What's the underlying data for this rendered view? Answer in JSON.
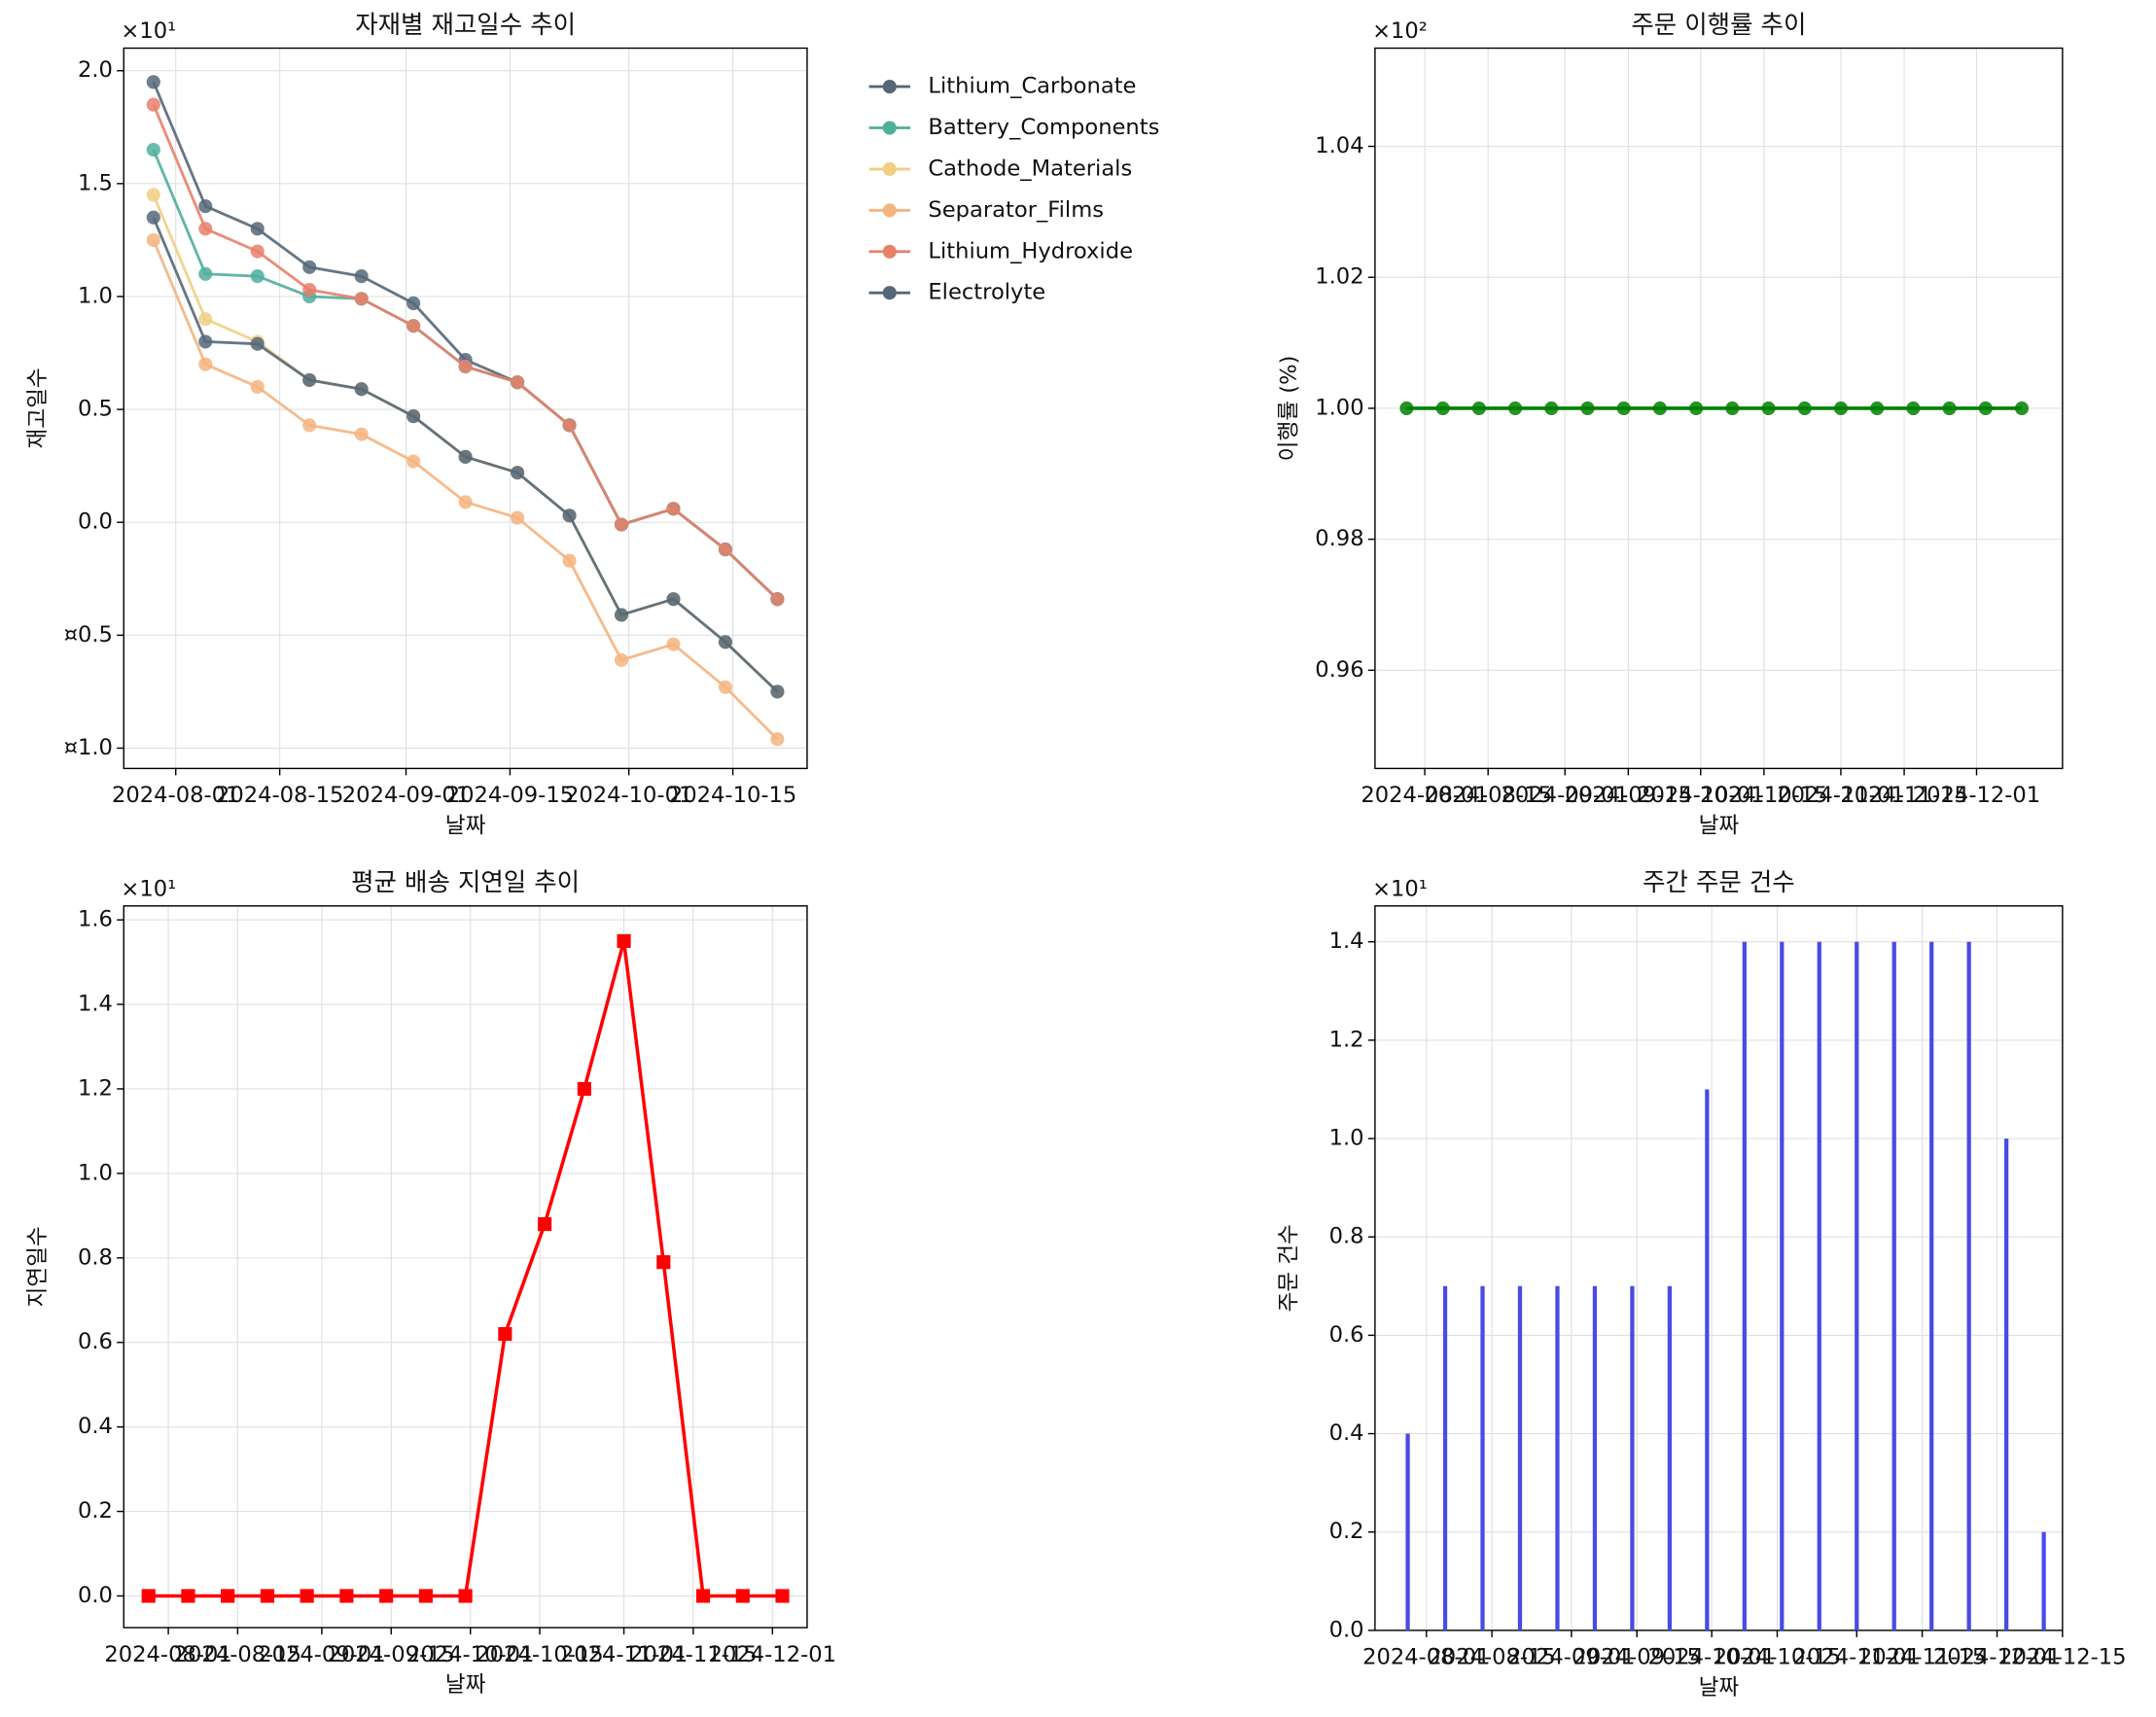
{
  "chart_data": [
    {
      "type": "line",
      "title": "자재별 재고일수 추이",
      "x_label": "날짜",
      "y_label": "재고일수",
      "y_offset_label": "×10¹",
      "x": [
        "2024-07-29",
        "2024-08-05",
        "2024-08-12",
        "2024-08-19",
        "2024-08-26",
        "2024-09-02",
        "2024-09-09",
        "2024-09-16",
        "2024-09-23",
        "2024-09-30",
        "2024-10-07",
        "2024-10-14",
        "2024-10-21"
      ],
      "series": [
        {
          "name": "Lithium_Carbonate",
          "color": "#556778",
          "values": [
            1.95,
            1.4,
            1.3,
            1.13,
            1.09,
            0.97,
            0.72,
            0.62,
            0.43,
            -0.01,
            0.06,
            -0.12,
            -0.34
          ]
        },
        {
          "name": "Battery_Components",
          "color": "#4fae9c",
          "values": [
            1.65,
            1.1,
            1.09,
            1.0,
            0.99,
            0.87,
            0.69,
            0.62,
            0.43,
            -0.01,
            0.06,
            -0.12,
            -0.34
          ]
        },
        {
          "name": "Cathode_Materials",
          "color": "#f0cf85",
          "values": [
            1.45,
            0.9,
            0.8,
            0.63,
            0.59,
            0.47,
            0.29,
            0.22,
            0.03,
            -0.41,
            -0.34,
            -0.53,
            -0.75
          ]
        },
        {
          "name": "Separator_Films",
          "color": "#f4b47f",
          "values": [
            1.25,
            0.7,
            0.6,
            0.43,
            0.39,
            0.27,
            0.09,
            0.02,
            -0.17,
            -0.61,
            -0.54,
            -0.73,
            -0.96
          ]
        },
        {
          "name": "Lithium_Hydroxide",
          "color": "#e8806a",
          "values": [
            1.85,
            1.3,
            1.2,
            1.03,
            0.99,
            0.87,
            0.69,
            0.62,
            0.43,
            -0.01,
            0.06,
            -0.12,
            -0.34
          ]
        },
        {
          "name": "Electrolyte",
          "color": "#556778",
          "values": [
            1.35,
            0.8,
            0.79,
            0.63,
            0.59,
            0.47,
            0.29,
            0.22,
            0.03,
            -0.41,
            -0.34,
            -0.53,
            -0.75
          ]
        }
      ],
      "marker": "circle",
      "legend": "outside upper right",
      "grid": true,
      "xlim": [
        "2024-07-25",
        "2024-10-25"
      ],
      "xticks": [
        "2024-08-01",
        "2024-08-15",
        "2024-09-01",
        "2024-09-15",
        "2024-10-01",
        "2024-10-15"
      ],
      "ylim": [
        -1.09,
        2.1
      ],
      "yticks": [
        {
          "value": 2,
          "label": "2.0"
        },
        1.5,
        {
          "value": 1,
          "label": "1.0"
        },
        0.5,
        {
          "value": 0,
          "label": "0.0"
        },
        {
          "value": -0.5,
          "label": "¤0.5"
        },
        {
          "value": -1,
          "label": "¤1.0"
        }
      ]
    },
    {
      "type": "line",
      "title": "주문 이행률 추이",
      "x_label": "날짜",
      "y_label": "이행률 (%)",
      "y_offset_label": "×10²",
      "x": [
        "2024-07-28",
        "2024-08-05",
        "2024-08-13",
        "2024-08-21",
        "2024-08-29",
        "2024-09-06",
        "2024-09-14",
        "2024-09-22",
        "2024-09-30",
        "2024-10-08",
        "2024-10-16",
        "2024-10-24",
        "2024-11-01",
        "2024-11-09",
        "2024-11-17",
        "2024-11-25",
        "2024-12-03",
        "2024-12-11"
      ],
      "values": [
        1,
        1,
        1,
        1,
        1,
        1,
        1,
        1,
        1,
        1,
        1,
        1,
        1,
        1,
        1,
        1,
        1,
        1
      ],
      "color": "#008000",
      "marker": "circle",
      "grid": true,
      "xlim": [
        "2024-07-21",
        "2024-12-20"
      ],
      "xticks": [
        "2024-08-01",
        "2024-08-15",
        "2024-09-01",
        "2024-09-15",
        "2024-10-01",
        "2024-10-15",
        "2024-11-01",
        "2024-11-15",
        "2024-12-01"
      ],
      "ylim": [
        0.945,
        1.055
      ],
      "yticks": [
        0.96,
        0.98,
        {
          "value": 1,
          "label": "1.00"
        },
        1.02,
        1.04
      ]
    },
    {
      "type": "line",
      "title": "평균 배송 지연일 추이",
      "x_label": "날짜",
      "y_label": "지연일수",
      "y_offset_label": "×10¹",
      "x": [
        "2024-07-28",
        "2024-08-05",
        "2024-08-13",
        "2024-08-21",
        "2024-08-29",
        "2024-09-06",
        "2024-09-14",
        "2024-09-22",
        "2024-09-30",
        "2024-10-08",
        "2024-10-16",
        "2024-10-24",
        "2024-11-01",
        "2024-11-09",
        "2024-11-17",
        "2024-11-25",
        "2024-12-03"
      ],
      "values": [
        0,
        0,
        0,
        0,
        0,
        0,
        0,
        0,
        0,
        0.62,
        0.88,
        1.2,
        1.55,
        0.79,
        0,
        0,
        0
      ],
      "color": "#ff0000",
      "marker": "square",
      "grid": true,
      "xlim": [
        "2024-07-23",
        "2024-12-08"
      ],
      "xticks": [
        "2024-08-01",
        "2024-08-15",
        "2024-09-01",
        "2024-09-15",
        "2024-10-01",
        "2024-10-15",
        "2024-11-01",
        "2024-11-15",
        "2024-12-01"
      ],
      "ylim": [
        -0.075,
        1.633
      ],
      "yticks": [
        {
          "value": 0,
          "label": "0.0"
        },
        0.2,
        0.4,
        0.6,
        0.8,
        {
          "value": 1,
          "label": "1.0"
        },
        1.2,
        1.4,
        1.6
      ]
    },
    {
      "type": "bar",
      "title": "주간 주문 건수",
      "x_label": "날짜",
      "y_label": "주문 건수",
      "y_offset_label": "×10¹",
      "x": [
        "2024-07-28",
        "2024-08-05",
        "2024-08-13",
        "2024-08-21",
        "2024-08-29",
        "2024-09-06",
        "2024-09-14",
        "2024-09-22",
        "2024-09-30",
        "2024-10-08",
        "2024-10-16",
        "2024-10-24",
        "2024-11-01",
        "2024-11-09",
        "2024-11-17",
        "2024-11-25",
        "2024-12-03",
        "2024-12-11"
      ],
      "values": [
        0.4,
        0.7,
        0.7,
        0.7,
        0.7,
        0.7,
        0.7,
        0.7,
        1.1,
        1.4,
        1.4,
        1.4,
        1.4,
        1.4,
        1.4,
        1.4,
        1.0,
        0.2
      ],
      "color": "#4a4ae6",
      "grid": true,
      "xlim": [
        "2024-07-21",
        "2024-12-15"
      ],
      "xticks": [
        "2024-08-01",
        "2024-08-15",
        "2024-09-01",
        "2024-09-15",
        "2024-10-01",
        "2024-10-15",
        "2024-11-01",
        "2024-11-15",
        "2024-12-01",
        "2024-12-15"
      ],
      "ylim": [
        0,
        1.473
      ],
      "yticks": [
        {
          "value": 0,
          "label": "0.0"
        },
        0.2,
        0.4,
        0.6,
        0.8,
        {
          "value": 1,
          "label": "1.0"
        },
        1.2,
        1.4
      ]
    }
  ]
}
